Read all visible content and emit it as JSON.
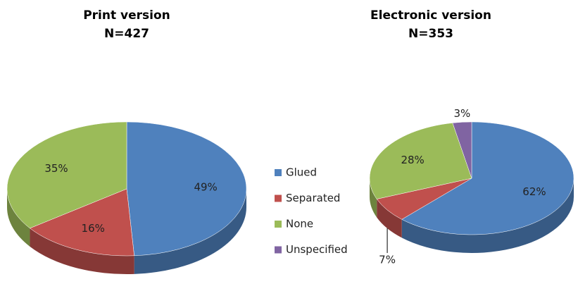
{
  "chart_data": [
    {
      "type": "pie",
      "title": "Print version",
      "subtitle": "N=427",
      "categories": [
        "Glued",
        "Separated",
        "None"
      ],
      "values": [
        49,
        16,
        35
      ],
      "value_labels": [
        "49%",
        "16%",
        "35%"
      ],
      "colors": [
        "#4f81bd",
        "#c0504d",
        "#9bbb59"
      ]
    },
    {
      "type": "pie",
      "title": "Electronic version",
      "subtitle": "N=353",
      "categories": [
        "Glued",
        "Separated",
        "None",
        "Unspecified"
      ],
      "values": [
        62,
        7,
        28,
        3
      ],
      "value_labels": [
        "62%",
        "7%",
        "28%",
        "3%"
      ],
      "colors": [
        "#4f81bd",
        "#c0504d",
        "#9bbb59",
        "#8064a2"
      ],
      "legend": true
    }
  ]
}
